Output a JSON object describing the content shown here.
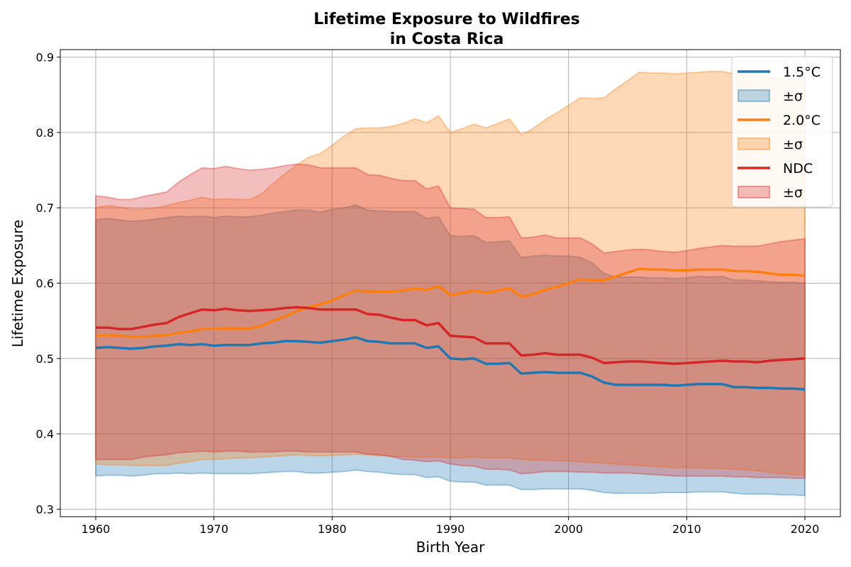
{
  "chart_data": {
    "type": "line",
    "title": [
      "Lifetime Exposure to Wildfires",
      "in Costa Rica"
    ],
    "xlabel": "Birth Year",
    "ylabel": "Lifetime Exposure",
    "xlim": [
      1957,
      2023
    ],
    "ylim": [
      0.29,
      0.91
    ],
    "xticks": [
      1960,
      1970,
      1980,
      1990,
      2000,
      2010,
      2020
    ],
    "yticks": [
      0.3,
      0.4,
      0.5,
      0.6,
      0.7,
      0.8,
      0.9
    ],
    "grid": true,
    "legend_position": "top-right",
    "x": [
      1960,
      1961,
      1962,
      1963,
      1964,
      1965,
      1966,
      1967,
      1968,
      1969,
      1970,
      1971,
      1972,
      1973,
      1974,
      1975,
      1976,
      1977,
      1978,
      1979,
      1980,
      1981,
      1982,
      1983,
      1984,
      1985,
      1986,
      1987,
      1988,
      1989,
      1990,
      1991,
      1992,
      1993,
      1994,
      1995,
      1996,
      1997,
      1998,
      1999,
      2000,
      2001,
      2002,
      2003,
      2004,
      2005,
      2006,
      2007,
      2008,
      2009,
      2010,
      2011,
      2012,
      2013,
      2014,
      2015,
      2016,
      2017,
      2018,
      2019,
      2020
    ],
    "series": [
      {
        "name": "1.5°C",
        "band_label": "±σ",
        "color": "#1f77b4",
        "values": [
          0.514,
          0.515,
          0.514,
          0.513,
          0.514,
          0.516,
          0.517,
          0.519,
          0.518,
          0.519,
          0.517,
          0.518,
          0.518,
          0.518,
          0.52,
          0.521,
          0.523,
          0.523,
          0.522,
          0.521,
          0.523,
          0.525,
          0.528,
          0.523,
          0.522,
          0.52,
          0.52,
          0.52,
          0.514,
          0.516,
          0.5,
          0.499,
          0.5,
          0.493,
          0.493,
          0.494,
          0.48,
          0.481,
          0.482,
          0.481,
          0.481,
          0.481,
          0.476,
          0.468,
          0.465,
          0.465,
          0.465,
          0.465,
          0.465,
          0.464,
          0.465,
          0.466,
          0.466,
          0.466,
          0.462,
          0.462,
          0.461,
          0.461,
          0.46,
          0.46,
          0.459
        ],
        "upper": [
          0.684,
          0.686,
          0.684,
          0.682,
          0.683,
          0.685,
          0.687,
          0.689,
          0.688,
          0.689,
          0.687,
          0.689,
          0.688,
          0.688,
          0.69,
          0.693,
          0.695,
          0.697,
          0.697,
          0.694,
          0.698,
          0.7,
          0.704,
          0.697,
          0.696,
          0.695,
          0.695,
          0.695,
          0.686,
          0.688,
          0.663,
          0.662,
          0.663,
          0.654,
          0.655,
          0.656,
          0.634,
          0.636,
          0.637,
          0.636,
          0.636,
          0.634,
          0.627,
          0.613,
          0.608,
          0.608,
          0.608,
          0.607,
          0.607,
          0.606,
          0.607,
          0.609,
          0.608,
          0.609,
          0.604,
          0.604,
          0.603,
          0.602,
          0.601,
          0.601,
          0.6
        ],
        "lower": [
          0.344,
          0.345,
          0.345,
          0.344,
          0.345,
          0.347,
          0.347,
          0.348,
          0.347,
          0.348,
          0.347,
          0.347,
          0.347,
          0.347,
          0.348,
          0.349,
          0.35,
          0.35,
          0.348,
          0.348,
          0.349,
          0.35,
          0.352,
          0.35,
          0.349,
          0.347,
          0.346,
          0.346,
          0.342,
          0.343,
          0.337,
          0.336,
          0.336,
          0.332,
          0.332,
          0.332,
          0.326,
          0.326,
          0.327,
          0.327,
          0.327,
          0.327,
          0.325,
          0.322,
          0.321,
          0.321,
          0.321,
          0.321,
          0.322,
          0.322,
          0.322,
          0.323,
          0.323,
          0.323,
          0.321,
          0.32,
          0.32,
          0.32,
          0.319,
          0.319,
          0.318
        ]
      },
      {
        "name": "2.0°C",
        "band_label": "±σ",
        "color": "#ff7f0e",
        "values": [
          0.53,
          0.531,
          0.53,
          0.529,
          0.529,
          0.53,
          0.531,
          0.534,
          0.536,
          0.539,
          0.539,
          0.54,
          0.54,
          0.54,
          0.543,
          0.55,
          0.556,
          0.563,
          0.568,
          0.572,
          0.577,
          0.584,
          0.59,
          0.589,
          0.589,
          0.589,
          0.59,
          0.593,
          0.591,
          0.596,
          0.584,
          0.587,
          0.59,
          0.587,
          0.59,
          0.593,
          0.582,
          0.585,
          0.591,
          0.595,
          0.6,
          0.605,
          0.604,
          0.604,
          0.609,
          0.614,
          0.619,
          0.618,
          0.618,
          0.617,
          0.617,
          0.618,
          0.618,
          0.618,
          0.616,
          0.616,
          0.615,
          0.613,
          0.611,
          0.611,
          0.61
        ],
        "upper": [
          0.7,
          0.703,
          0.701,
          0.698,
          0.698,
          0.7,
          0.703,
          0.707,
          0.71,
          0.714,
          0.711,
          0.712,
          0.711,
          0.711,
          0.718,
          0.732,
          0.745,
          0.757,
          0.767,
          0.772,
          0.783,
          0.795,
          0.805,
          0.806,
          0.806,
          0.808,
          0.812,
          0.818,
          0.813,
          0.822,
          0.8,
          0.805,
          0.811,
          0.806,
          0.812,
          0.818,
          0.797,
          0.805,
          0.817,
          0.826,
          0.836,
          0.846,
          0.845,
          0.846,
          0.858,
          0.869,
          0.88,
          0.879,
          0.879,
          0.878,
          0.879,
          0.88,
          0.881,
          0.881,
          0.878,
          0.878,
          0.877,
          0.874,
          0.871,
          0.871,
          0.87
        ],
        "lower": [
          0.36,
          0.359,
          0.359,
          0.358,
          0.358,
          0.358,
          0.358,
          0.361,
          0.363,
          0.366,
          0.366,
          0.367,
          0.368,
          0.368,
          0.369,
          0.37,
          0.371,
          0.372,
          0.371,
          0.371,
          0.371,
          0.372,
          0.373,
          0.372,
          0.371,
          0.37,
          0.37,
          0.369,
          0.369,
          0.369,
          0.368,
          0.368,
          0.369,
          0.368,
          0.368,
          0.368,
          0.366,
          0.365,
          0.365,
          0.364,
          0.364,
          0.363,
          0.362,
          0.361,
          0.36,
          0.359,
          0.358,
          0.357,
          0.356,
          0.355,
          0.355,
          0.355,
          0.354,
          0.354,
          0.353,
          0.352,
          0.351,
          0.349,
          0.347,
          0.346,
          0.345
        ]
      },
      {
        "name": "NDC",
        "band_label": "±σ",
        "color": "#d62728",
        "values": [
          0.541,
          0.541,
          0.539,
          0.539,
          0.542,
          0.545,
          0.547,
          0.555,
          0.56,
          0.565,
          0.564,
          0.566,
          0.564,
          0.563,
          0.564,
          0.565,
          0.567,
          0.568,
          0.567,
          0.565,
          0.565,
          0.565,
          0.565,
          0.559,
          0.558,
          0.554,
          0.551,
          0.551,
          0.544,
          0.547,
          0.53,
          0.529,
          0.528,
          0.52,
          0.52,
          0.52,
          0.504,
          0.505,
          0.507,
          0.505,
          0.505,
          0.505,
          0.501,
          0.494,
          0.495,
          0.496,
          0.496,
          0.495,
          0.494,
          0.493,
          0.494,
          0.495,
          0.496,
          0.497,
          0.496,
          0.496,
          0.495,
          0.497,
          0.498,
          0.499,
          0.5
        ],
        "upper": [
          0.716,
          0.714,
          0.711,
          0.711,
          0.715,
          0.718,
          0.721,
          0.734,
          0.744,
          0.753,
          0.752,
          0.755,
          0.752,
          0.75,
          0.751,
          0.753,
          0.756,
          0.758,
          0.757,
          0.753,
          0.753,
          0.753,
          0.753,
          0.744,
          0.743,
          0.739,
          0.736,
          0.736,
          0.725,
          0.729,
          0.7,
          0.699,
          0.698,
          0.687,
          0.687,
          0.688,
          0.66,
          0.661,
          0.664,
          0.66,
          0.66,
          0.66,
          0.652,
          0.64,
          0.642,
          0.644,
          0.645,
          0.644,
          0.642,
          0.641,
          0.643,
          0.646,
          0.648,
          0.65,
          0.649,
          0.649,
          0.649,
          0.652,
          0.655,
          0.657,
          0.659
        ],
        "lower": [
          0.366,
          0.366,
          0.366,
          0.366,
          0.369,
          0.371,
          0.372,
          0.375,
          0.376,
          0.377,
          0.376,
          0.377,
          0.377,
          0.376,
          0.376,
          0.376,
          0.377,
          0.377,
          0.376,
          0.376,
          0.376,
          0.376,
          0.376,
          0.373,
          0.372,
          0.37,
          0.366,
          0.365,
          0.363,
          0.364,
          0.36,
          0.358,
          0.357,
          0.353,
          0.353,
          0.352,
          0.347,
          0.348,
          0.35,
          0.35,
          0.35,
          0.349,
          0.349,
          0.348,
          0.348,
          0.348,
          0.347,
          0.346,
          0.345,
          0.344,
          0.344,
          0.344,
          0.344,
          0.344,
          0.343,
          0.343,
          0.342,
          0.342,
          0.342,
          0.341,
          0.341
        ]
      }
    ]
  }
}
